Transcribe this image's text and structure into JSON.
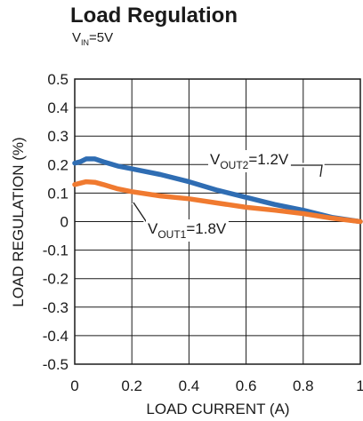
{
  "chart_data": {
    "type": "line",
    "title": "Load Regulation",
    "subtitle": {
      "prefix": "V",
      "subscript": "IN",
      "suffix": "=5V"
    },
    "xlabel": "LOAD CURRENT (A)",
    "ylabel": "LOAD REGULATION (%)",
    "xlim": [
      0,
      1
    ],
    "ylim": [
      -0.5,
      0.5
    ],
    "grid": true,
    "xticks": [
      0,
      0.2,
      0.4,
      0.6,
      0.8,
      1
    ],
    "xtick_labels": [
      "0",
      "0.2",
      "0.4",
      "0.6",
      "0.8",
      "1"
    ],
    "yticks": [
      0.5,
      0.4,
      0.3,
      0.2,
      0.1,
      0,
      -0.1,
      -0.2,
      -0.3,
      -0.4,
      -0.5
    ],
    "ytick_labels": [
      "0.5",
      "0.4",
      "0.3",
      "0.2",
      "0.1",
      "0",
      "-0.1",
      "-0.2",
      "-0.3",
      "-0.4",
      "-0.5"
    ],
    "series": [
      {
        "name": "VOUT2=1.2V",
        "label_prefix": "V",
        "label_subscript": "OUT2",
        "label_suffix": "=1.2V",
        "color": "#2f6db3",
        "x": [
          0,
          0.02,
          0.04,
          0.07,
          0.1,
          0.15,
          0.2,
          0.3,
          0.4,
          0.5,
          0.6,
          0.7,
          0.8,
          0.9,
          1.0
        ],
        "y": [
          0.205,
          0.21,
          0.22,
          0.22,
          0.21,
          0.195,
          0.185,
          0.165,
          0.14,
          0.11,
          0.085,
          0.06,
          0.04,
          0.015,
          0.0
        ]
      },
      {
        "name": "VOUT1=1.8V",
        "label_prefix": "V",
        "label_subscript": "OUT1",
        "label_suffix": "=1.8V",
        "color": "#f07a30",
        "x": [
          0,
          0.02,
          0.04,
          0.07,
          0.1,
          0.15,
          0.2,
          0.3,
          0.4,
          0.5,
          0.6,
          0.7,
          0.8,
          0.9,
          1.0
        ],
        "y": [
          0.13,
          0.135,
          0.14,
          0.138,
          0.13,
          0.115,
          0.105,
          0.09,
          0.08,
          0.065,
          0.05,
          0.04,
          0.028,
          0.012,
          0.0
        ]
      }
    ]
  }
}
